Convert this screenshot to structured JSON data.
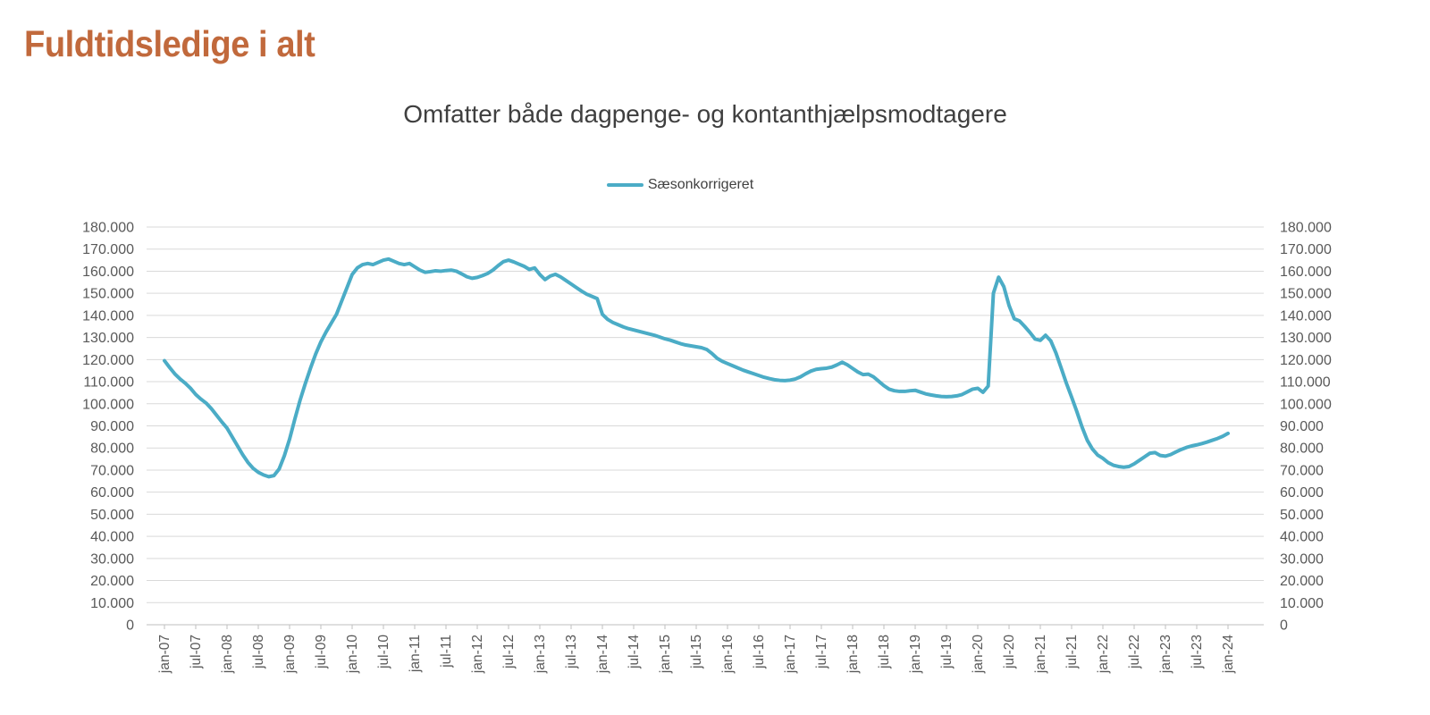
{
  "page": {
    "title": "Fuldtidsledige i alt",
    "background": "#FFFFFF"
  },
  "chart": {
    "subtitle": "Omfatter både dagpenge- og kontanthjælpsmodtagere",
    "legend": {
      "label": "Sæsonkorrigeret"
    },
    "colors": {
      "series": "#4BACC6",
      "title": "#C1693C",
      "subtitle": "#3F3F3F",
      "axis_text": "#595959",
      "gridline": "#D9D9D9",
      "axis_line": "#BFBFBF"
    }
  },
  "chart_data": {
    "type": "line",
    "title": "Omfatter både dagpenge- og kontanthjælpsmodtagere",
    "series": [
      {
        "name": "Sæsonkorrigeret",
        "color": "#4BACC6"
      }
    ],
    "frequency": "monthly",
    "x_start": "jan-07",
    "x_end": "jan-24",
    "x_tick_labels": [
      "jan-07",
      "jul-07",
      "jan-08",
      "jul-08",
      "jan-09",
      "jul-09",
      "jan-10",
      "jul-10",
      "jan-11",
      "jul-11",
      "jan-12",
      "jul-12",
      "jan-13",
      "jul-13",
      "jan-14",
      "jul-14",
      "jan-15",
      "jul-15",
      "jan-16",
      "jul-16",
      "jan-17",
      "jul-17",
      "jan-18",
      "jul-18",
      "jan-19",
      "jul-19",
      "jan-20",
      "jul-20",
      "jan-21",
      "jul-21",
      "jan-22",
      "jul-22",
      "jan-23",
      "jul-23",
      "jan-24"
    ],
    "y_ticks": [
      0,
      10000,
      20000,
      30000,
      40000,
      50000,
      60000,
      70000,
      80000,
      90000,
      100000,
      110000,
      120000,
      130000,
      140000,
      150000,
      160000,
      170000,
      180000
    ],
    "ylim": [
      0,
      180000
    ],
    "grid": "horizontal",
    "legend_position": "top-center",
    "values": [
      119500,
      116400,
      113500,
      111200,
      109300,
      107000,
      104200,
      102100,
      100300,
      97800,
      94800,
      91800,
      89000,
      85000,
      81000,
      77000,
      73500,
      70800,
      69000,
      67800,
      67000,
      67500,
      70500,
      76500,
      84000,
      93000,
      101500,
      109000,
      116000,
      122500,
      128000,
      132500,
      136500,
      140500,
      146500,
      152500,
      158500,
      161500,
      163000,
      163500,
      163000,
      164000,
      165000,
      165500,
      164500,
      163500,
      163000,
      163500,
      162000,
      160500,
      159500,
      159800,
      160200,
      160000,
      160300,
      160500,
      160000,
      158800,
      157500,
      156800,
      157200,
      158000,
      159000,
      160500,
      162500,
      164300,
      165000,
      164200,
      163200,
      162200,
      160800,
      161500,
      158500,
      156200,
      157800,
      158600,
      157400,
      155800,
      154200,
      152600,
      151000,
      149600,
      148600,
      147600,
      140500,
      138200,
      136800,
      135800,
      134800,
      134000,
      133400,
      132800,
      132200,
      131600,
      131000,
      130200,
      129400,
      128800,
      128000,
      127200,
      126600,
      126200,
      125800,
      125400,
      124600,
      122800,
      120600,
      119200,
      118200,
      117200,
      116200,
      115200,
      114400,
      113600,
      112800,
      112000,
      111400,
      110900,
      110600,
      110500,
      110700,
      111200,
      112200,
      113600,
      114800,
      115600,
      115900,
      116100,
      116600,
      117600,
      118800,
      117600,
      116000,
      114400,
      113200,
      113400,
      112200,
      110200,
      108200,
      106600,
      105900,
      105600,
      105600,
      105900,
      106100,
      105300,
      104500,
      104000,
      103600,
      103300,
      103200,
      103300,
      103600,
      104200,
      105400,
      106600,
      107000,
      105200,
      108000,
      150000,
      157300,
      153000,
      144500,
      138500,
      137500,
      135000,
      132300,
      129300,
      128700,
      131000,
      128500,
      123000,
      116200,
      109300,
      103000,
      96500,
      89500,
      83500,
      79500,
      76800,
      75300,
      73400,
      72200,
      71600,
      71300,
      71600,
      72800,
      74400,
      76000,
      77600,
      77900,
      76600,
      76300,
      77000,
      78200,
      79300,
      80200,
      80900,
      81400,
      82000,
      82700,
      83500,
      84300,
      85300,
      86600
    ]
  }
}
